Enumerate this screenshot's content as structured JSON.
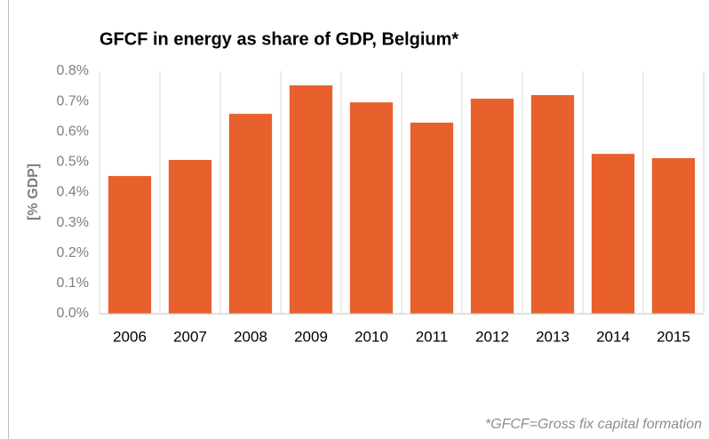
{
  "chart_data": {
    "type": "bar",
    "title": "GFCF in energy as share of GDP, Belgium*",
    "y_label": "[% GDP]",
    "footnote": "*GFCF=Gross fix capital formation",
    "categories": [
      "2006",
      "2007",
      "2008",
      "2009",
      "2010",
      "2011",
      "2012",
      "2013",
      "2014",
      "2015"
    ],
    "values": [
      0.454,
      0.507,
      0.659,
      0.753,
      0.697,
      0.63,
      0.709,
      0.721,
      0.527,
      0.513
    ],
    "color": "#e8612c",
    "ylim": [
      0,
      0.8
    ],
    "yticks": [
      {
        "value": 0,
        "label": "0.0%"
      },
      {
        "value": 0.1,
        "label": "0.1%"
      },
      {
        "value": 0.2,
        "label": "0.2%"
      },
      {
        "value": 0.3,
        "label": "0.3%"
      },
      {
        "value": 0.4,
        "label": "0.4%"
      },
      {
        "value": 0.5,
        "label": "0.5%"
      },
      {
        "value": 0.6,
        "label": "0.6%"
      },
      {
        "value": 0.7,
        "label": "0.7%"
      },
      {
        "value": 0.8,
        "label": "0.8%"
      }
    ],
    "grid": false
  }
}
